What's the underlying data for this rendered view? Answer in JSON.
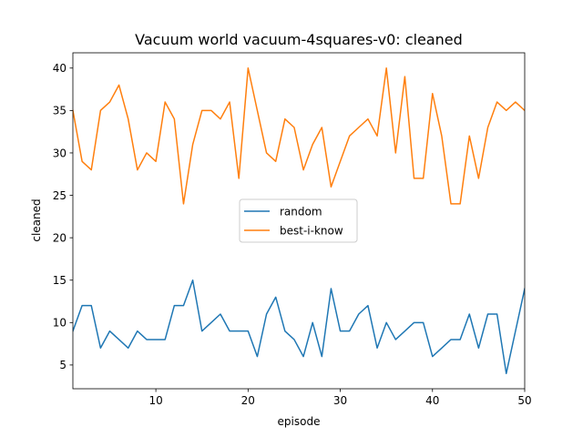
{
  "chart_data": {
    "type": "line",
    "title": "Vacuum world vacuum-4squares-v0: cleaned",
    "xlabel": "episode",
    "ylabel": "cleaned",
    "xlim": [
      1,
      50
    ],
    "ylim": [
      2.2,
      41.8
    ],
    "xticks": [
      10,
      20,
      30,
      40,
      50
    ],
    "yticks": [
      5,
      10,
      15,
      20,
      25,
      30,
      35,
      40
    ],
    "grid": false,
    "legend_position": "center",
    "x": [
      1,
      2,
      3,
      4,
      5,
      6,
      7,
      8,
      9,
      10,
      11,
      12,
      13,
      14,
      15,
      16,
      17,
      18,
      19,
      20,
      21,
      22,
      23,
      24,
      25,
      26,
      27,
      28,
      29,
      30,
      31,
      32,
      33,
      34,
      35,
      36,
      37,
      38,
      39,
      40,
      41,
      42,
      43,
      44,
      45,
      46,
      47,
      48,
      49,
      50
    ],
    "series": [
      {
        "name": "random",
        "color": "#1f77b4",
        "values": [
          9,
          12,
          12,
          7,
          9,
          8,
          7,
          9,
          8,
          8,
          8,
          12,
          12,
          15,
          9,
          10,
          11,
          9,
          9,
          9,
          6,
          11,
          13,
          9,
          8,
          6,
          10,
          6,
          14,
          9,
          9,
          11,
          12,
          7,
          10,
          8,
          9,
          10,
          10,
          6,
          7,
          8,
          8,
          11,
          7,
          11,
          11,
          4,
          9,
          14
        ]
      },
      {
        "name": "best-i-know",
        "color": "#ff7f0e",
        "values": [
          35,
          29,
          28,
          35,
          36,
          38,
          34,
          28,
          30,
          29,
          36,
          34,
          24,
          31,
          35,
          35,
          34,
          36,
          27,
          40,
          35,
          30,
          29,
          34,
          33,
          28,
          31,
          33,
          26,
          29,
          32,
          33,
          34,
          32,
          40,
          30,
          39,
          27,
          27,
          37,
          32,
          24,
          24,
          32,
          27,
          33,
          36,
          35,
          36,
          35
        ]
      }
    ]
  }
}
